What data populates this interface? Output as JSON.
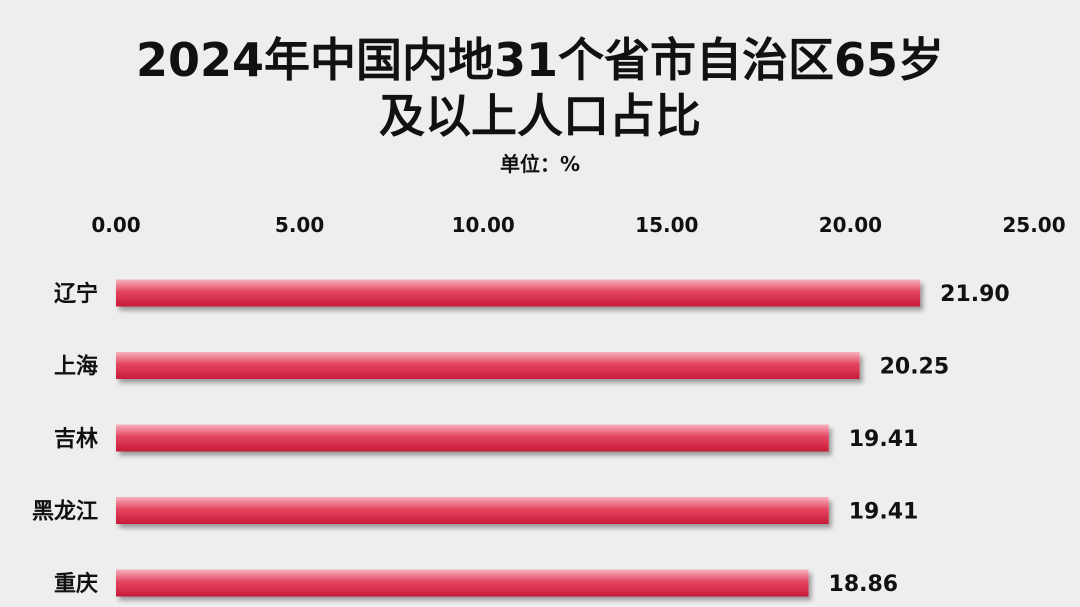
{
  "title_line1": "2024年中国内地31个省市自治区65岁",
  "title_line2": "及以上人口占比",
  "unit_label": "单位：%",
  "colors": {
    "bar_top": "#f6b2bf",
    "bar_mid": "#e4455f",
    "bar_bottom": "#c81b3a",
    "background": "#eeeeee"
  },
  "chart_data": {
    "type": "bar",
    "orientation": "horizontal",
    "title": "2024年中国内地31个省市自治区65岁及以上人口占比",
    "subtitle": "单位：%",
    "categories": [
      "辽宁",
      "上海",
      "吉林",
      "黑龙江",
      "重庆"
    ],
    "values": [
      21.9,
      20.25,
      19.41,
      19.41,
      18.86
    ],
    "value_labels": [
      "21.90",
      "20.25",
      "19.41",
      "19.41",
      "18.86"
    ],
    "xlim": [
      0,
      25
    ],
    "x_ticks": [
      0,
      5,
      10,
      15,
      20,
      25
    ],
    "x_tick_labels": [
      "0.00",
      "5.00",
      "10.00",
      "15.00",
      "20.00",
      "25.00"
    ],
    "x_axis_position": "top",
    "grid": false,
    "legend": "none"
  }
}
